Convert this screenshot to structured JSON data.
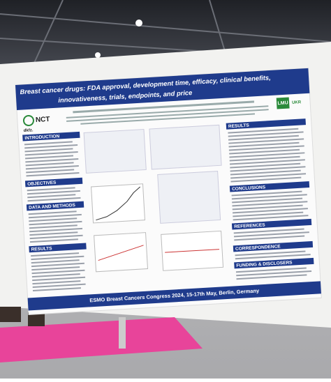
{
  "poster": {
    "title_lines": [
      "Breast cancer drugs: FDA approval, development time, efficacy, clinical benefits,",
      "innovativeness, trials, endpoints, and price"
    ],
    "logo_left": "NCT",
    "logo_left_sub": "dkfz.",
    "logo_right": "LMU",
    "logo_right_sub": "UKR",
    "sections_left": [
      "INTRODUCTION",
      "OBJECTIVES",
      "DATA AND METHODS",
      "RESULTS"
    ],
    "sections_right": [
      "RESULTS",
      "CONCLUSIONS",
      "REFERENCES",
      "CORRESPONDENCE",
      "FUNDING & DISCLOSERS"
    ],
    "footer": "ESMO Breast Cancers Congress 2024, 15-17th May, Berlin, Germany"
  }
}
